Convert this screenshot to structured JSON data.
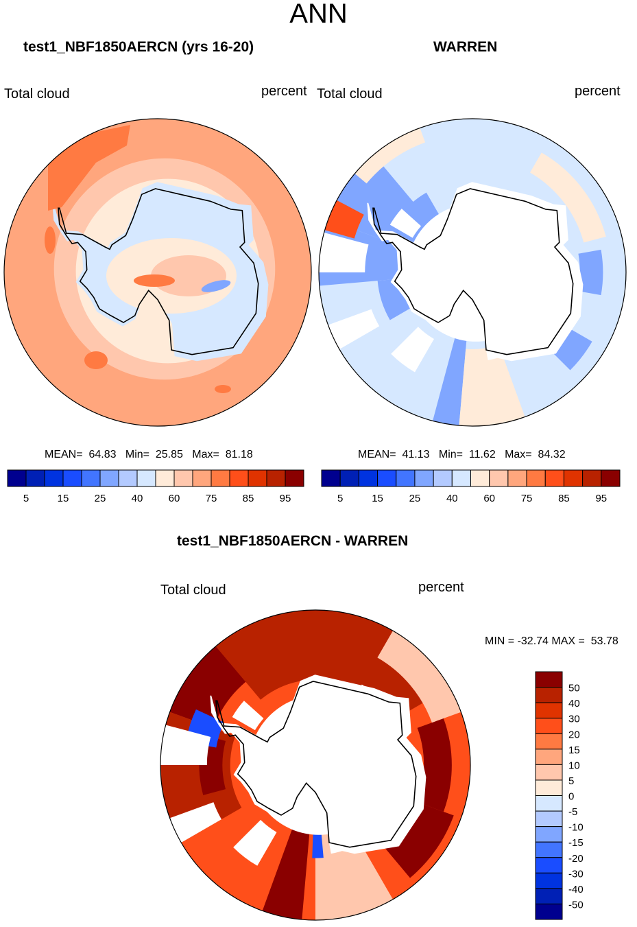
{
  "page_title": "ANN",
  "colors": {
    "abs_palette": [
      "#00008f",
      "#0020b5",
      "#0033e0",
      "#1a4dff",
      "#4275ff",
      "#80a6ff",
      "#b3caff",
      "#d6e8ff",
      "#ffebd9",
      "#ffc7ad",
      "#ffa67d",
      "#ff7a42",
      "#ff4f1a",
      "#e03300",
      "#b82200",
      "#8a0000"
    ],
    "diff_palette": [
      "#00008f",
      "#0020b5",
      "#0033e0",
      "#1a4dff",
      "#4275ff",
      "#80a6ff",
      "#b3caff",
      "#d6e8ff",
      "#ffebd9",
      "#ffc7ad",
      "#ffa67d",
      "#ff7a42",
      "#ff4f1a",
      "#e03300",
      "#b82200",
      "#8a0000"
    ],
    "missing": "#ffffff",
    "coastline": "#000000"
  },
  "chart_data": [
    {
      "type": "heatmap",
      "projection": "south-polar-stereographic",
      "title": "test1_NBF1850AERCN (yrs 16-20)",
      "left_label": "Total cloud",
      "right_label": "percent",
      "stats": {
        "mean_label": "MEAN=",
        "mean": "64.83",
        "min_label": "Min=",
        "min": "25.85",
        "max_label": "Max=",
        "max": "81.18"
      },
      "levels": [
        5,
        10,
        15,
        20,
        25,
        30,
        40,
        50,
        60,
        70,
        75,
        80,
        85,
        90,
        95
      ],
      "tick_labels": [
        "5",
        "15",
        "25",
        "40",
        "60",
        "75",
        "85",
        "95"
      ],
      "colorbar_orientation": "horizontal",
      "field": {
        "ocean_outer": 75,
        "ocean_mid": 70,
        "near_coast": 60,
        "coastal_ring": 55,
        "interior": 45,
        "interior_center": 65,
        "interior_peak": 77,
        "east_coast_low": 25,
        "notes": "high values (75-80) west of Drake Passage and scattered ocean patches"
      }
    },
    {
      "type": "heatmap",
      "projection": "south-polar-stereographic",
      "title": "WARREN",
      "left_label": "Total cloud",
      "right_label": "percent",
      "stats": {
        "mean_label": "MEAN=",
        "mean": "41.13",
        "min_label": "Min=",
        "min": "11.62",
        "max_label": "Max=",
        "max": "84.32"
      },
      "levels": [
        5,
        10,
        15,
        20,
        25,
        30,
        40,
        50,
        60,
        70,
        75,
        80,
        85,
        90,
        95
      ],
      "tick_labels": [
        "5",
        "15",
        "25",
        "40",
        "60",
        "75",
        "85",
        "95"
      ],
      "colorbar_orientation": "horizontal",
      "field": {
        "background": 45,
        "low_sectors": 25,
        "high_sectors": 55,
        "peak_sector": 80,
        "missing_over_continent": true
      }
    },
    {
      "type": "heatmap",
      "projection": "south-polar-stereographic",
      "title": "test1_NBF1850AERCN - WARREN",
      "left_label": "Total cloud",
      "right_label": "percent",
      "stats": {
        "min_label": "MIN =",
        "min": "-32.74",
        "max_label": "MAX =",
        "max": "53.78"
      },
      "levels": [
        -50,
        -40,
        -30,
        -20,
        -15,
        -10,
        -5,
        0,
        5,
        10,
        15,
        20,
        30,
        40,
        50
      ],
      "tick_labels": [
        "50",
        "40",
        "30",
        "20",
        "15",
        "10",
        "5",
        "0",
        "-5",
        "-10",
        "-15",
        "-20",
        "-30",
        "-40",
        "-50"
      ],
      "colorbar_orientation": "vertical",
      "field": {
        "background": 25,
        "high_sectors": 45,
        "peak_sectors": 55,
        "low_spots": -25,
        "missing_over_continent": true
      }
    }
  ]
}
